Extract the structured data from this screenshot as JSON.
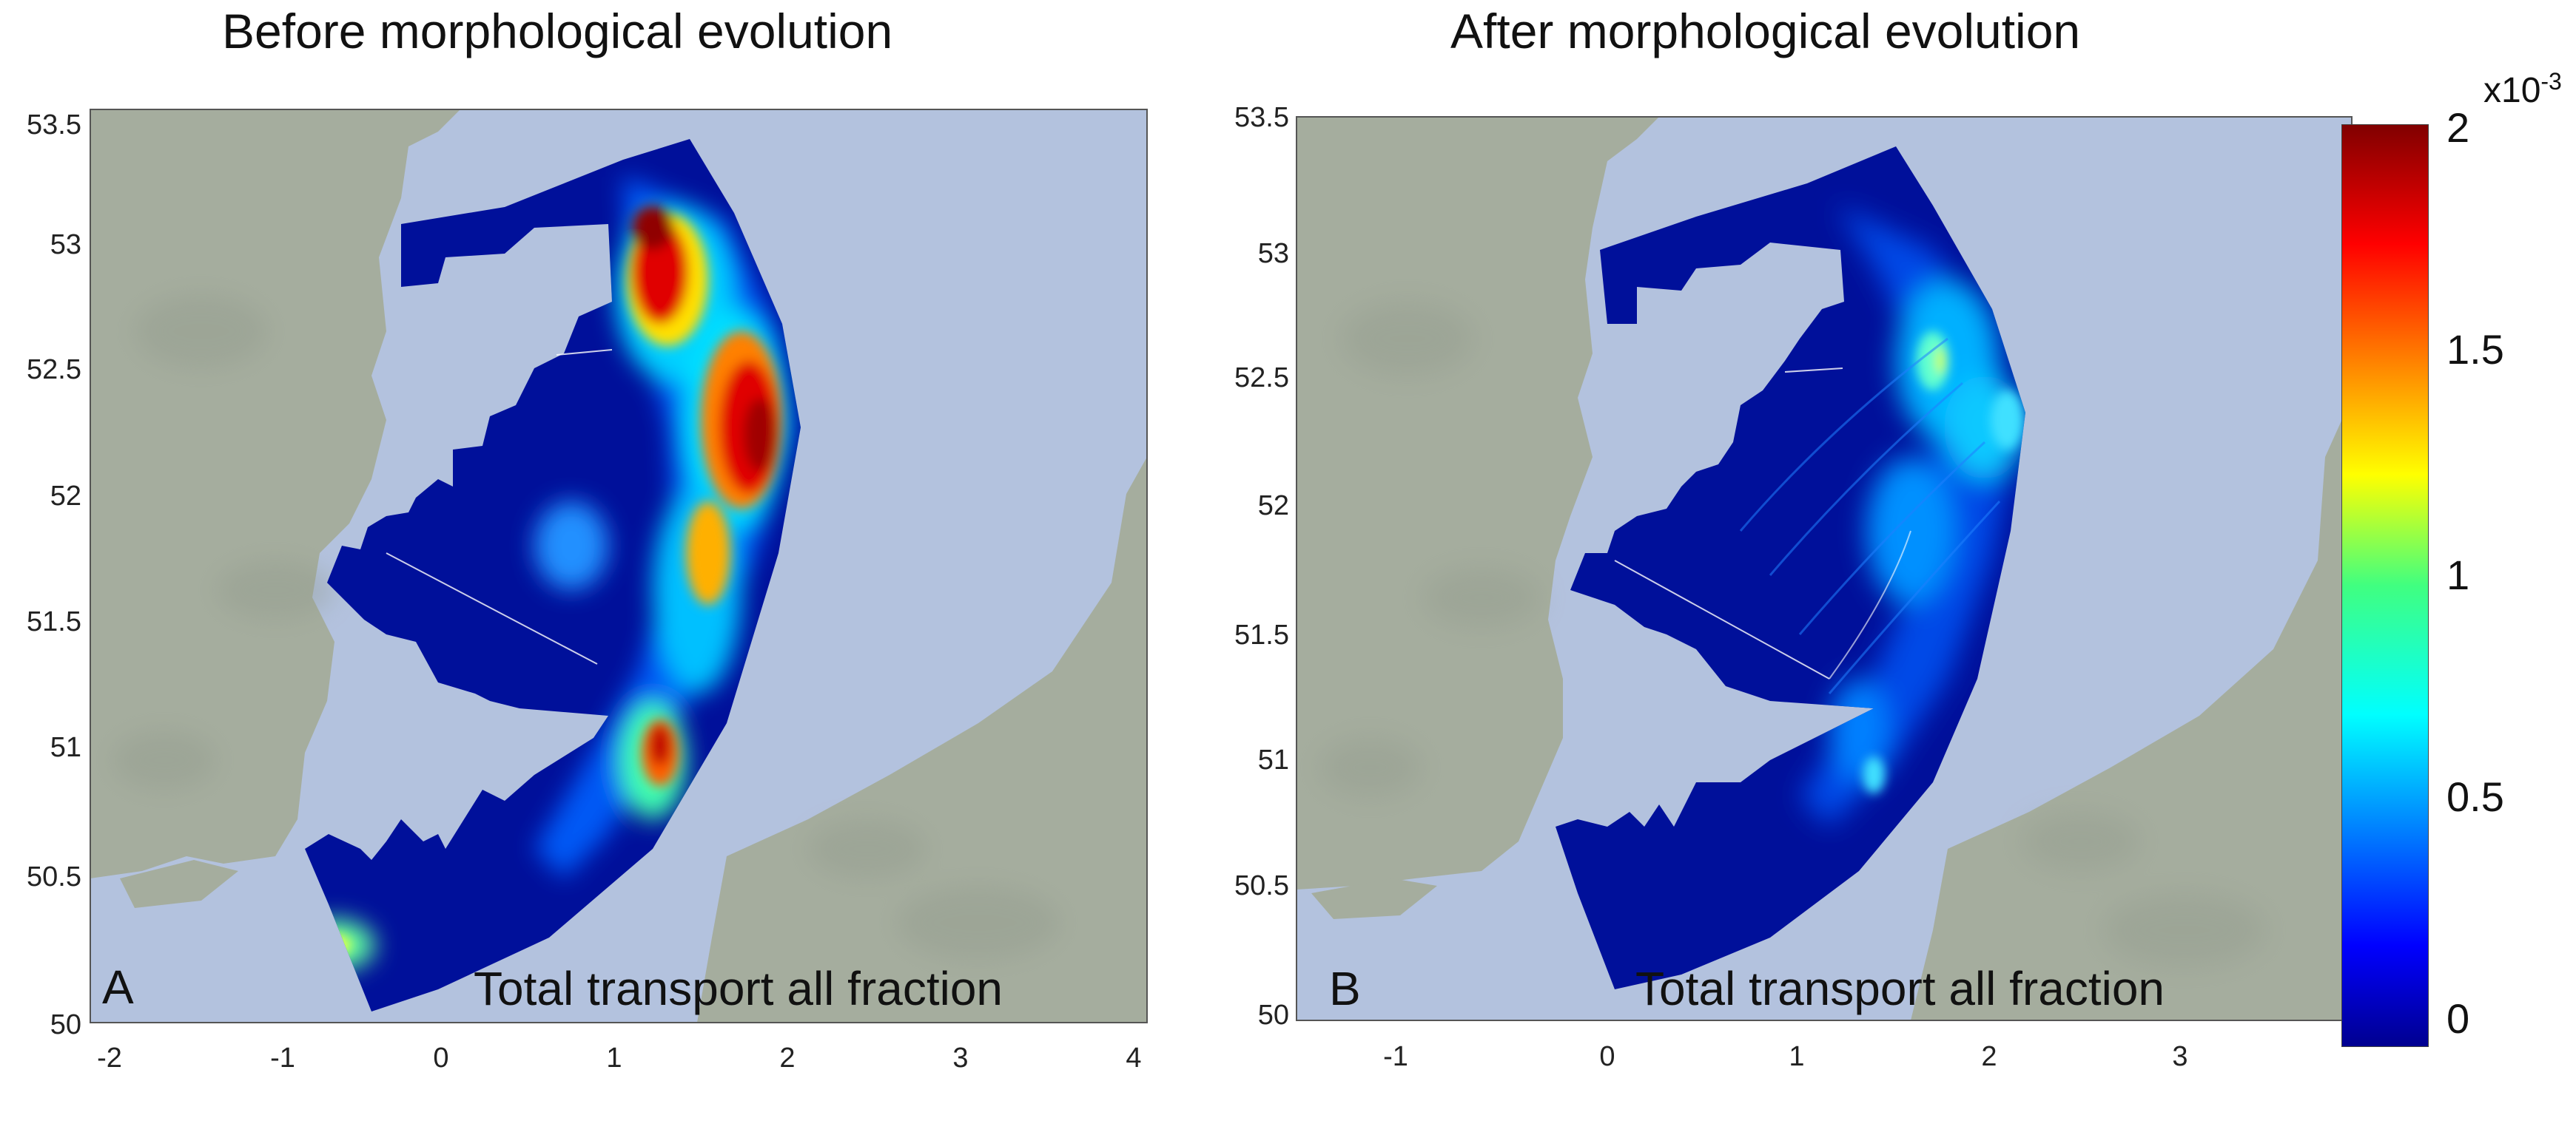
{
  "panels": [
    {
      "id": "A",
      "title": "Before morphological evolution",
      "letter": "A",
      "caption": "Total transport all fraction",
      "yticks": [
        "53.5",
        "53",
        "52.5",
        "52",
        "51.5",
        "51",
        "50.5",
        "50"
      ],
      "xticks": [
        "-2",
        "-1",
        "0",
        "1",
        "2",
        "3",
        "4"
      ]
    },
    {
      "id": "B",
      "title": "After morphological evolution",
      "letter": "B",
      "caption": "Total transport all fraction",
      "yticks": [
        "53.5",
        "53",
        "52.5",
        "52",
        "51.5",
        "51",
        "50.5",
        "50"
      ],
      "xticks": [
        "-1",
        "0",
        "1",
        "2",
        "3"
      ]
    }
  ],
  "colorbar": {
    "multiplier_base": "x10",
    "multiplier_exp": "-3",
    "ticks": [
      "2",
      "1.5",
      "1",
      "0.5",
      "0"
    ],
    "colormap": "jet",
    "range": [
      0,
      2
    ]
  },
  "colors": {
    "sea": "#b3c2de",
    "land": "#a5ad9e",
    "land_dark": "#8f988a",
    "field_low": "#00109a"
  }
}
